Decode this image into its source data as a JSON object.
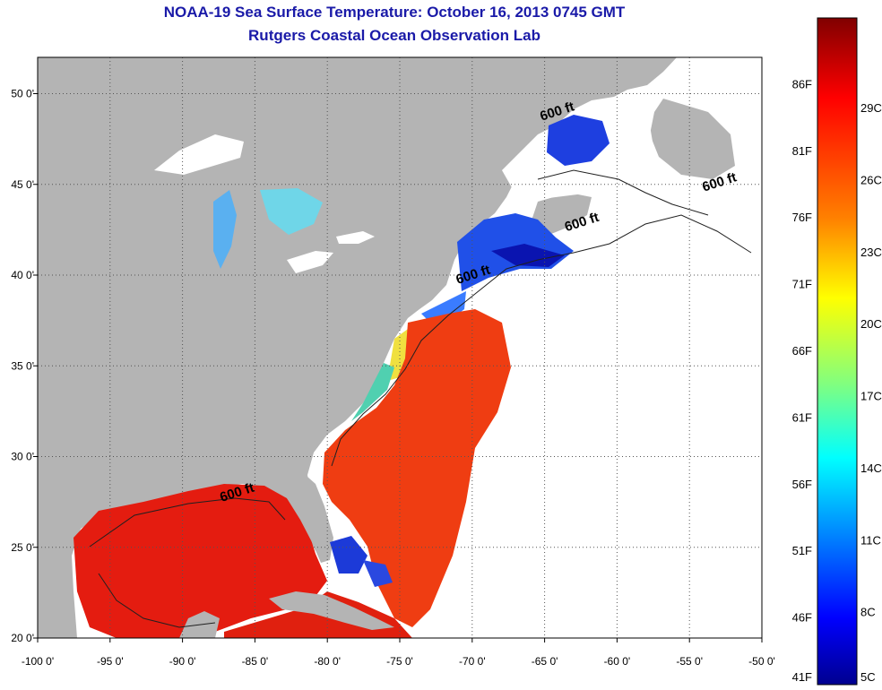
{
  "header": {
    "title": "NOAA-19 Sea Surface Temperature:  October 16, 2013 0745 GMT",
    "subtitle": "Rutgers Coastal Ocean Observation Lab"
  },
  "map": {
    "lon_range": [
      -100,
      -50
    ],
    "lat_range": [
      20,
      52
    ],
    "lon_ticks": [
      {
        "value": -100,
        "label": "-100 0'"
      },
      {
        "value": -95,
        "label": "-95 0'"
      },
      {
        "value": -90,
        "label": "-90 0'"
      },
      {
        "value": -85,
        "label": "-85 0'"
      },
      {
        "value": -80,
        "label": "-80 0'"
      },
      {
        "value": -75,
        "label": "-75 0'"
      },
      {
        "value": -70,
        "label": "-70 0'"
      },
      {
        "value": -65,
        "label": "-65 0'"
      },
      {
        "value": -60,
        "label": "-60 0'"
      },
      {
        "value": -55,
        "label": "-55 0'"
      },
      {
        "value": -50,
        "label": "-50 0'"
      }
    ],
    "lat_ticks": [
      {
        "value": 20,
        "label": "20 0'"
      },
      {
        "value": 25,
        "label": "25 0'"
      },
      {
        "value": 30,
        "label": "30 0'"
      },
      {
        "value": 35,
        "label": "35 0'"
      },
      {
        "value": 40,
        "label": "40 0'"
      },
      {
        "value": 45,
        "label": "45 0'"
      },
      {
        "value": 50,
        "label": "50 0'"
      }
    ],
    "isobath_labels": [
      {
        "text": "600 ft",
        "lon": -65.2,
        "lat": 48.5
      },
      {
        "text": "600 ft",
        "lon": -54,
        "lat": 44.6
      },
      {
        "text": "600 ft",
        "lon": -63.5,
        "lat": 42.4
      },
      {
        "text": "600 ft",
        "lon": -71,
        "lat": 39.5
      },
      {
        "text": "600 ft",
        "lon": -87.3,
        "lat": 27.5
      }
    ],
    "colors": {
      "land": "#b4b4b4",
      "nodata": "#ffffff",
      "gulf_water": "#e41c10",
      "atlantic_water": "#ef3d12"
    }
  },
  "colorbar": {
    "fahrenheit_labels": [
      "86F",
      "81F",
      "76F",
      "71F",
      "66F",
      "61F",
      "56F",
      "51F",
      "46F",
      "41F"
    ],
    "celsius_labels": [
      "29C",
      "26C",
      "23C",
      "20C",
      "17C",
      "14C",
      "11C",
      "8C",
      "5C"
    ],
    "colors": [
      "#800000",
      "#ff0000",
      "#ff8000",
      "#ffff00",
      "#80ff80",
      "#00ffff",
      "#0080ff",
      "#0000ff",
      "#00008f"
    ]
  }
}
